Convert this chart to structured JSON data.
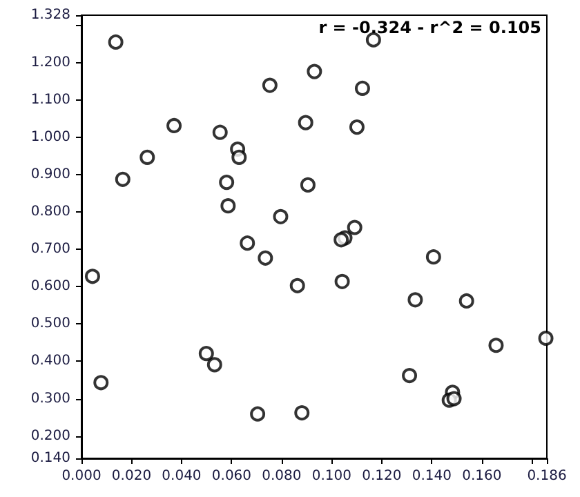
{
  "chart_data": {
    "type": "scatter",
    "marker": "circle",
    "grid": false,
    "annotations": [
      "r = -0.324 - r^2 = 0.105"
    ],
    "xlim": [
      0,
      0.186
    ],
    "ylim": [
      0.14,
      1.328
    ],
    "xticks": [
      {
        "value": 0,
        "label": "0.000"
      },
      {
        "value": 0.02,
        "label": "0.020"
      },
      {
        "value": 0.04,
        "label": "0.040"
      },
      {
        "value": 0.06,
        "label": "0.060"
      },
      {
        "value": 0.08,
        "label": "0.080"
      },
      {
        "value": 0.1,
        "label": "0.100"
      },
      {
        "value": 0.12,
        "label": "0.120"
      },
      {
        "value": 0.14,
        "label": "0.140"
      },
      {
        "value": 0.16,
        "label": "0.160"
      },
      {
        "value": 0.18,
        "label": null
      },
      {
        "value": 0.186,
        "label": "0.186"
      }
    ],
    "yticks": [
      {
        "value": 0.14,
        "label": "0.140"
      },
      {
        "value": 0.2,
        "label": "0.200"
      },
      {
        "value": 0.3,
        "label": "0.300"
      },
      {
        "value": 0.4,
        "label": "0.400"
      },
      {
        "value": 0.5,
        "label": "0.500"
      },
      {
        "value": 0.6,
        "label": "0.600"
      },
      {
        "value": 0.7,
        "label": "0.700"
      },
      {
        "value": 0.8,
        "label": "0.800"
      },
      {
        "value": 0.9,
        "label": "0.900"
      },
      {
        "value": 1.0,
        "label": "1.000"
      },
      {
        "value": 1.1,
        "label": "1.100"
      },
      {
        "value": 1.2,
        "label": "1.200"
      },
      {
        "value": 1.3,
        "label": null
      },
      {
        "value": 1.328,
        "label": "1.328"
      }
    ],
    "series": [
      {
        "color": "#000000",
        "x": [
          0.0137,
          0.0263,
          0.037,
          0.0165,
          0.0554,
          0.0624,
          0.063,
          0.058,
          0.0586,
          0.0753,
          0.0796,
          0.1167,
          0.0931,
          0.1123,
          0.0896,
          0.1101,
          0.0905,
          0.1092,
          0.1053,
          0.1038,
          0.0663,
          0.0735,
          0.0044,
          0.0499,
          0.0532,
          0.0078,
          0.0704,
          0.1407,
          0.0863,
          0.1042,
          0.1334,
          0.1539,
          0.1657,
          0.1856,
          0.1311,
          0.1483,
          0.147,
          0.1489,
          0.0881
        ],
        "values": [
          1.256,
          0.947,
          1.032,
          0.888,
          1.014,
          0.969,
          0.947,
          0.88,
          0.817,
          1.14,
          0.788,
          1.262,
          1.177,
          1.132,
          1.04,
          1.028,
          0.873,
          0.759,
          0.731,
          0.726,
          0.717,
          0.677,
          0.628,
          0.421,
          0.391,
          0.343,
          0.259,
          0.68,
          0.603,
          0.614,
          0.565,
          0.562,
          0.443,
          0.462,
          0.362,
          0.317,
          0.296,
          0.3,
          0.262
        ]
      }
    ]
  }
}
